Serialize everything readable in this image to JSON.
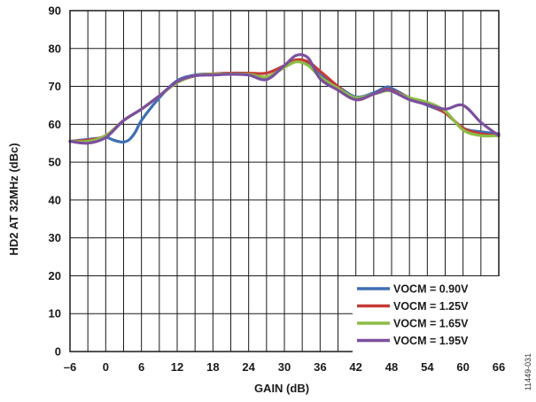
{
  "chart_data": {
    "type": "line",
    "title": "",
    "xlabel": "GAIN (dB)",
    "ylabel": "HD2 AT 32MHz (dBc)",
    "xlim": [
      -6,
      66
    ],
    "ylim": [
      0,
      90
    ],
    "x_ticks": [
      -6,
      0,
      6,
      12,
      18,
      24,
      30,
      36,
      42,
      48,
      54,
      60,
      66
    ],
    "x_tick_labels": [
      "–6",
      "0",
      "6",
      "12",
      "18",
      "24",
      "30",
      "36",
      "42",
      "48",
      "54",
      "60",
      "66"
    ],
    "y_ticks": [
      0,
      10,
      20,
      30,
      40,
      50,
      60,
      70,
      80,
      90
    ],
    "y_tick_labels": [
      "0",
      "10",
      "20",
      "30",
      "40",
      "50",
      "60",
      "70",
      "80",
      "90"
    ],
    "x_minor_grid_step": 3,
    "grid": true,
    "legend_position": "bottom-right",
    "figure_id": "11449-031",
    "series": [
      {
        "name": "VOCM = 0.90V",
        "color": "#3f6fb4",
        "x": [
          -6,
          -3,
          0,
          1,
          2,
          3,
          4,
          5,
          6,
          9,
          12,
          15,
          18,
          21,
          24,
          27,
          30,
          32,
          34,
          36,
          39,
          42,
          45,
          47,
          48,
          51,
          54,
          57,
          60,
          63,
          66
        ],
        "y": [
          55.5,
          56,
          56.5,
          56,
          55.5,
          55.3,
          56,
          58,
          61,
          67,
          71.5,
          73,
          73.3,
          73.5,
          73.3,
          72,
          75.5,
          77,
          76,
          73,
          70,
          67.2,
          68.3,
          69.8,
          69.5,
          67,
          65,
          63,
          59,
          58,
          57.5
        ]
      },
      {
        "name": "VOCM = 1.25V",
        "color": "#c43a36",
        "x": [
          -6,
          -3,
          0,
          3,
          6,
          9,
          12,
          15,
          18,
          21,
          24,
          27,
          30,
          32,
          34,
          36,
          39,
          42,
          45,
          47,
          48,
          51,
          54,
          57,
          60,
          63,
          66
        ],
        "y": [
          55.5,
          55.8,
          57,
          61,
          64,
          67.5,
          71,
          72.8,
          73.3,
          73.5,
          73.5,
          73.5,
          75.5,
          77,
          76.5,
          74,
          70,
          66.5,
          68,
          69.2,
          69,
          67,
          65.3,
          63,
          59,
          57.5,
          57
        ]
      },
      {
        "name": "VOCM = 1.65V",
        "color": "#8ebc45",
        "x": [
          -6,
          -3,
          0,
          3,
          6,
          9,
          12,
          15,
          18,
          21,
          24,
          27,
          30,
          32,
          34,
          36,
          39,
          42,
          45,
          47,
          48,
          51,
          54,
          57,
          60,
          63,
          66
        ],
        "y": [
          55.5,
          55.5,
          57,
          61,
          64,
          67.5,
          71,
          72.8,
          73.2,
          73.3,
          73.2,
          72.5,
          75,
          76.5,
          75.5,
          72.5,
          69.5,
          67,
          68,
          68.8,
          68.7,
          67,
          65.8,
          63.5,
          58.5,
          57,
          57
        ]
      },
      {
        "name": "VOCM = 1.95V",
        "color": "#7b4f9e",
        "x": [
          -6,
          -3,
          0,
          3,
          6,
          9,
          12,
          15,
          18,
          21,
          24,
          27,
          30,
          32,
          34,
          36,
          39,
          42,
          45,
          47,
          48,
          51,
          54,
          57,
          60,
          63,
          66
        ],
        "y": [
          55.5,
          55,
          56.5,
          61,
          64,
          67.5,
          71.3,
          72.8,
          73,
          73.2,
          73,
          71.8,
          75.5,
          78.2,
          77.5,
          72,
          69,
          66.5,
          68,
          69,
          68.8,
          66.5,
          65.2,
          64,
          65,
          60.5,
          57
        ]
      }
    ]
  }
}
